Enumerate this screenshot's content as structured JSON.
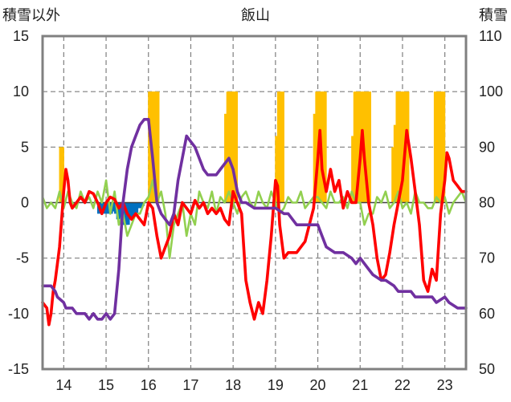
{
  "chart_data": {
    "type": "line",
    "title": "飯山",
    "ylabel_left": "積雪以外",
    "ylabel_right": "積雪",
    "x_ticks": [
      "14",
      "15",
      "16",
      "17",
      "18",
      "19",
      "20",
      "21",
      "22",
      "23"
    ],
    "x_tick_positions": [
      14,
      15,
      16,
      17,
      18,
      19,
      20,
      21,
      22,
      23
    ],
    "xlim": [
      13.5,
      23.5
    ],
    "ylim_left": [
      -15,
      15
    ],
    "yticks_left": [
      "15",
      "10",
      "5",
      "0",
      "-5",
      "-10",
      "-15"
    ],
    "ylim_right": [
      50,
      110
    ],
    "yticks_right": [
      "110",
      "100",
      "90",
      "80",
      "70",
      "60",
      "50"
    ],
    "grid": true,
    "colors": {
      "red_series": "#ff0000",
      "purple_series": "#7030a0",
      "green_series": "#92d050",
      "orange_bars": "#ffc000",
      "blue_bars": "#0070c0",
      "frame": "#808080",
      "grid": "#7f7f7f"
    },
    "series": [
      {
        "axis": "left",
        "color": "#ff0000",
        "x": [
          13.5,
          13.6,
          13.65,
          13.7,
          13.75,
          13.8,
          13.9,
          14.0,
          14.05,
          14.1,
          14.15,
          14.2,
          14.3,
          14.4,
          14.5,
          14.6,
          14.7,
          14.8,
          14.9,
          15.0,
          15.1,
          15.2,
          15.3,
          15.4,
          15.5,
          15.6,
          15.7,
          15.8,
          15.9,
          16.0,
          16.1,
          16.2,
          16.3,
          16.4,
          16.5,
          16.6,
          16.7,
          16.8,
          16.9,
          17.0,
          17.1,
          17.2,
          17.3,
          17.4,
          17.5,
          17.6,
          17.7,
          17.8,
          17.9,
          18.0,
          18.1,
          18.2,
          18.3,
          18.4,
          18.5,
          18.6,
          18.7,
          18.8,
          18.9,
          19.0,
          19.05,
          19.1,
          19.2,
          19.3,
          19.4,
          19.5,
          19.6,
          19.7,
          19.8,
          19.9,
          20.0,
          20.05,
          20.1,
          20.2,
          20.3,
          20.4,
          20.5,
          20.6,
          20.7,
          20.8,
          20.9,
          21.0,
          21.05,
          21.1,
          21.2,
          21.3,
          21.4,
          21.5,
          21.6,
          21.7,
          21.8,
          21.9,
          22.0,
          22.1,
          22.2,
          22.3,
          22.4,
          22.5,
          22.6,
          22.7,
          22.8,
          22.9,
          23.0,
          23.05,
          23.1,
          23.2,
          23.3,
          23.4,
          23.5
        ],
        "y": [
          -9,
          -9.5,
          -11,
          -10,
          -8,
          -7,
          -4,
          1,
          3,
          2,
          0,
          -0.5,
          0,
          0.5,
          0,
          1,
          0.8,
          0,
          -1,
          0,
          0.5,
          0.3,
          -0.5,
          0,
          -1,
          -1.5,
          -1,
          -1.5,
          -2,
          0,
          -0.5,
          -3,
          -5,
          -4,
          -3,
          -1,
          -2,
          0,
          -0.5,
          -1,
          0.2,
          -0.5,
          0,
          -1,
          -0.5,
          -1,
          -0.5,
          -1.5,
          -2,
          1,
          0,
          -1,
          -7,
          -9,
          -10.5,
          -9,
          -10,
          -7,
          -3,
          2,
          1.5,
          -2,
          -5,
          -4.5,
          -4.5,
          -4.5,
          -4,
          -3.5,
          -2,
          -0.5,
          4,
          6.5,
          3,
          1,
          3,
          1,
          2,
          -0.5,
          1,
          0,
          0,
          4,
          6.5,
          4,
          0,
          -2,
          -5,
          -7,
          -6.5,
          -4.5,
          -2,
          0,
          2,
          6.5,
          4,
          1,
          -2,
          -7,
          -8,
          -6,
          -7,
          -1,
          2,
          4.5,
          4,
          2,
          1.5,
          1,
          1
        ]
      },
      {
        "axis": "left",
        "color": "#7030a0",
        "x": [
          13.5,
          13.7,
          13.8,
          13.85,
          14.0,
          14.05,
          14.2,
          14.3,
          14.5,
          14.6,
          14.7,
          14.8,
          14.9,
          15.0,
          15.1,
          15.2,
          15.3,
          15.4,
          15.5,
          15.6,
          15.7,
          15.8,
          15.9,
          16.0,
          16.1,
          16.2,
          16.3,
          16.4,
          16.5,
          16.6,
          16.7,
          16.8,
          16.9,
          17.0,
          17.1,
          17.2,
          17.3,
          17.4,
          17.5,
          17.6,
          17.7,
          17.8,
          17.9,
          18.0,
          18.1,
          18.2,
          18.3,
          18.5,
          18.6,
          18.8,
          18.9,
          19.0,
          19.2,
          19.3,
          19.5,
          19.6,
          19.8,
          20.0,
          20.1,
          20.2,
          20.4,
          20.5,
          20.6,
          20.8,
          20.9,
          21.0,
          21.2,
          21.3,
          21.5,
          21.6,
          21.8,
          21.9,
          22.0,
          22.2,
          22.3,
          22.5,
          22.7,
          22.8,
          23.0,
          23.1,
          23.3,
          23.5
        ],
        "y": [
          -7.5,
          -7.5,
          -8,
          -8.5,
          -9,
          -9.5,
          -9.5,
          -10,
          -10,
          -10.5,
          -10,
          -10.5,
          -10.5,
          -10,
          -10.5,
          -10,
          -6,
          0,
          3,
          5,
          6,
          7,
          7.5,
          7.5,
          4,
          0,
          -1,
          -1.5,
          -2,
          -1,
          2,
          4,
          6,
          5.5,
          5,
          4,
          3,
          2.5,
          2.5,
          2.5,
          3,
          3.5,
          4,
          3,
          1,
          0,
          0,
          -0.5,
          -0.5,
          -0.5,
          -0.5,
          -0.5,
          -1,
          -1,
          -2,
          -2,
          -2,
          -2,
          -3,
          -4,
          -4.5,
          -4.5,
          -4.5,
          -5,
          -5.5,
          -5,
          -6,
          -6.5,
          -7,
          -7,
          -7.5,
          -8,
          -8,
          -8,
          -8.5,
          -8.5,
          -8.5,
          -9,
          -8.5,
          -9,
          -9.5,
          -9.5
        ]
      },
      {
        "axis": "left",
        "color": "#92d050",
        "x": [
          13.5,
          13.6,
          13.7,
          13.8,
          13.9,
          14.0,
          14.1,
          14.2,
          14.3,
          14.4,
          14.5,
          14.6,
          14.7,
          14.8,
          14.9,
          15.0,
          15.1,
          15.2,
          15.3,
          15.4,
          15.5,
          15.6,
          15.7,
          15.8,
          15.9,
          16.0,
          16.1,
          16.2,
          16.3,
          16.4,
          16.5,
          16.6,
          16.7,
          16.8,
          16.9,
          17.0,
          17.1,
          17.2,
          17.3,
          17.4,
          17.5,
          17.6,
          17.7,
          17.8,
          17.9,
          18.0,
          18.1,
          18.2,
          18.3,
          18.4,
          18.5,
          18.6,
          18.7,
          18.8,
          18.9,
          19.0,
          19.1,
          19.2,
          19.3,
          19.4,
          19.5,
          19.6,
          19.7,
          19.8,
          19.9,
          20.0,
          20.1,
          20.2,
          20.3,
          20.4,
          20.5,
          20.6,
          20.7,
          20.8,
          20.9,
          21.0,
          21.1,
          21.2,
          21.3,
          21.4,
          21.5,
          21.6,
          21.7,
          21.8,
          21.9,
          22.0,
          22.1,
          22.2,
          22.3,
          22.4,
          22.5,
          22.6,
          22.7,
          22.8,
          22.9,
          23.0,
          23.1,
          23.2,
          23.3,
          23.4,
          23.5
        ],
        "y": [
          0.5,
          -0.5,
          0,
          -0.5,
          1,
          -0.5,
          1,
          0,
          -0.5,
          1,
          0,
          0.5,
          -0.5,
          1,
          0,
          2,
          -1,
          1,
          -2,
          -1,
          -3,
          -2,
          -1,
          -1,
          0,
          0.5,
          2,
          0,
          1,
          -1,
          -5,
          -2,
          -1,
          0,
          -3,
          -1,
          -2,
          1,
          0,
          -0.5,
          1,
          -1,
          0.5,
          0,
          1,
          0,
          -1,
          0.5,
          1,
          0,
          -0.5,
          1,
          0,
          -0.5,
          1,
          0,
          -1,
          -0.5,
          0.5,
          0,
          0,
          1,
          -0.5,
          0,
          0.5,
          0.5,
          0,
          -0.5,
          1,
          0,
          0,
          0.5,
          -0.5,
          1,
          0,
          0,
          -2,
          -1,
          -1,
          0.5,
          0,
          1,
          -0.5,
          0,
          1,
          -0.5,
          0,
          -1,
          1,
          0,
          0,
          -0.5,
          -0.5,
          0.5,
          0,
          0.5,
          -1,
          0,
          0.5,
          1,
          0
        ]
      }
    ],
    "bars": [
      {
        "axis": "left",
        "color": "#ffc000",
        "x": [
          13.95,
          16.05,
          16.1,
          16.15,
          16.2,
          17.85,
          17.9,
          17.95,
          18.0,
          18.05,
          19.05,
          19.1,
          19.15,
          19.95,
          20.0,
          20.05,
          20.1,
          20.15,
          20.85,
          20.9,
          20.95,
          21.0,
          21.05,
          21.1,
          21.15,
          21.2,
          21.8,
          21.85,
          21.9,
          21.95,
          22.0,
          22.05,
          22.1,
          22.8,
          22.85,
          22.9,
          22.95
        ],
        "y": [
          5,
          10,
          10,
          10,
          10,
          8,
          10,
          10,
          10,
          10,
          6,
          10,
          10,
          8,
          10,
          10,
          10,
          10,
          6,
          10,
          10,
          10,
          10,
          10,
          10,
          10,
          5,
          7,
          10,
          10,
          10,
          10,
          10,
          10,
          10,
          10,
          10
        ]
      },
      {
        "axis": "left",
        "color": "#0070c0",
        "x": [
          14.85,
          14.9,
          14.95,
          15.0,
          15.05,
          15.1,
          15.15,
          15.2,
          15.25,
          15.3,
          15.35,
          15.4,
          15.45,
          15.5,
          15.55,
          15.6,
          15.65,
          15.7,
          15.75,
          15.8,
          15.85
        ],
        "y": [
          -1,
          -0.5,
          -0.8,
          -1,
          -0.5,
          -1,
          -0.8,
          -0.5,
          -1,
          -1.5,
          -1.5,
          -2,
          -2,
          -2,
          -1.5,
          -1.5,
          -1,
          -1,
          -0.5,
          -0.5,
          -0.3
        ]
      }
    ]
  }
}
